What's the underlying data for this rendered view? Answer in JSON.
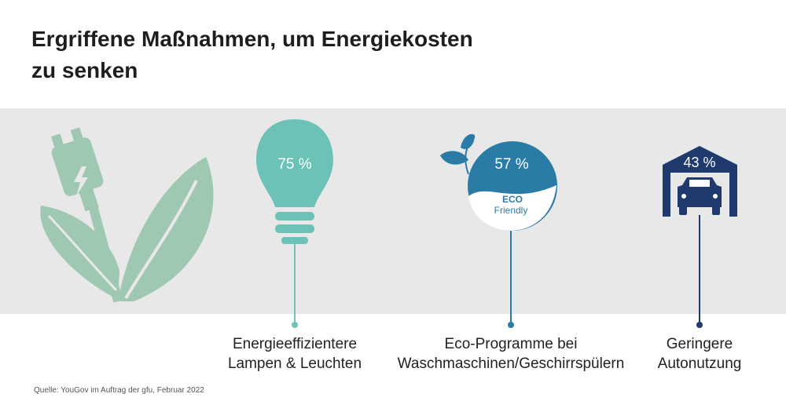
{
  "title": {
    "line1": "Ergriffene Maßnahmen, um Energiekosten",
    "line2": "zu senken"
  },
  "chart_data": {
    "type": "bar",
    "unit": "%",
    "categories": [
      "Energieeffizientere Lampen & Leuchten",
      "Eco-Programme bei Waschmaschinen/Geschirrspülern",
      "Geringere Autonutzung"
    ],
    "values": [
      75,
      57,
      43
    ],
    "value_labels": [
      "75 %",
      "57 %",
      "43 %"
    ]
  },
  "labels": [
    {
      "line1": "Energieeffizientere",
      "line2": "Lampen & Leuchten"
    },
    {
      "line1": "Eco-Programme bei",
      "line2": "Waschmaschinen/Geschirrspülern"
    },
    {
      "line1": "Geringere",
      "line2": "Autonutzung"
    }
  ],
  "icon_texts": {
    "eco": "ECO",
    "friendly": "Friendly"
  },
  "source": "Quelle: YouGov im Auftrag der gfu, Februar 2022",
  "colors": {
    "teal": "#6cc2b6",
    "blue": "#2a7ca7",
    "navy": "#1f3b6e",
    "leaf": "#9ec8b1",
    "band": "#e8e8e8"
  },
  "icons": [
    "plug-leaf-icon",
    "light-bulb-icon",
    "eco-friendly-icon",
    "garage-car-icon"
  ]
}
